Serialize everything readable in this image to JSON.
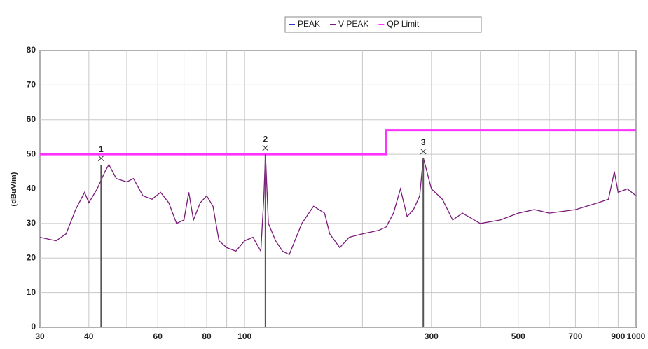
{
  "chart_data": {
    "type": "line",
    "y_label": "(dBuV/m)",
    "xscale": "log",
    "xlim": [
      30,
      1000
    ],
    "xticks": [
      30,
      40,
      60,
      80,
      100,
      300,
      500,
      700,
      900,
      1000
    ],
    "xminor": [
      50,
      70,
      90,
      200,
      400,
      600,
      800
    ],
    "ylim": [
      0,
      80
    ],
    "yticks": [
      0,
      10,
      20,
      30,
      40,
      50,
      60,
      70,
      80
    ],
    "grid": true,
    "legend": "top",
    "series": [
      {
        "name": "PEAK",
        "color": "#3333cc"
      },
      {
        "name": "V PEAK",
        "color": "#7a1a7a",
        "x": [
          30,
          33,
          35,
          37,
          39,
          40,
          42,
          44,
          45,
          47,
          50,
          52,
          55,
          58,
          61,
          64,
          67,
          70,
          72,
          74,
          77,
          80,
          83,
          86,
          90,
          95,
          100,
          105,
          110,
          112,
          113,
          115,
          120,
          125,
          130,
          140,
          150,
          160,
          165,
          175,
          185,
          200,
          220,
          230,
          240,
          250,
          260,
          270,
          280,
          286,
          300,
          320,
          340,
          360,
          400,
          450,
          500,
          550,
          600,
          700,
          800,
          850,
          880,
          900,
          950,
          1000
        ],
        "values": [
          26,
          25,
          27,
          34,
          39,
          36,
          40,
          45,
          47,
          43,
          42,
          43,
          38,
          37,
          39,
          36,
          30,
          31,
          39,
          31,
          36,
          38,
          35,
          25,
          23,
          22,
          25,
          26,
          22,
          38,
          50,
          30,
          25,
          22,
          21,
          30,
          35,
          33,
          27,
          23,
          26,
          27,
          28,
          29,
          33,
          40,
          32,
          34,
          38,
          49,
          40,
          37,
          31,
          33,
          30,
          31,
          33,
          34,
          33,
          34,
          36,
          37,
          45,
          39,
          40,
          38
        ]
      },
      {
        "name": "QP Limit",
        "color": "#ff33ff",
        "x": [
          30,
          230,
          230,
          1000
        ],
        "values": [
          50,
          50,
          57,
          57
        ]
      }
    ],
    "markers": [
      {
        "label": "1",
        "x": 43,
        "value": 47
      },
      {
        "label": "2",
        "x": 113,
        "value": 50
      },
      {
        "label": "3",
        "x": 286,
        "value": 49
      }
    ]
  }
}
